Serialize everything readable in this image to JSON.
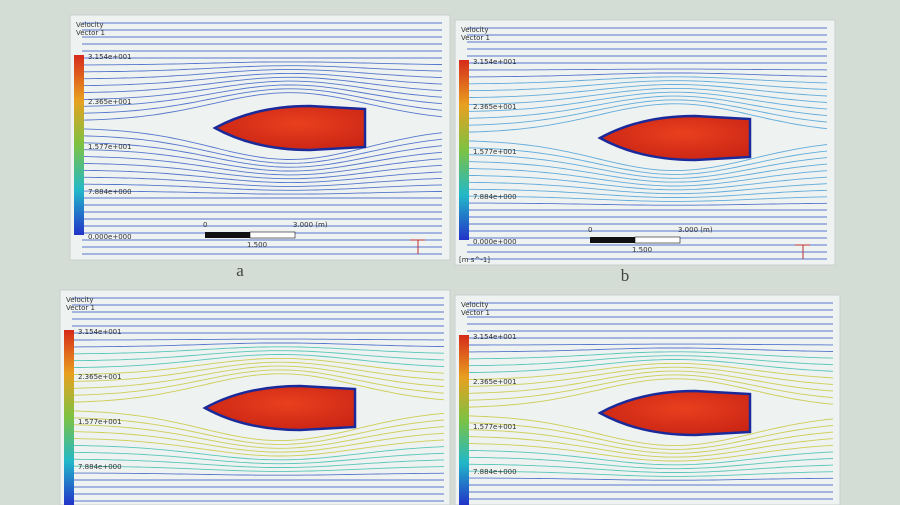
{
  "panels": [
    {
      "title": "Velocity",
      "subtitle": "Vector 1",
      "legend": [
        "3.154e+001",
        "2.365e+001",
        "1.577e+001",
        "7.884e+000",
        "0.000e+000"
      ],
      "scale": {
        "start": "0",
        "end": "3.000 (m)",
        "mid": "1.500"
      },
      "caption": "a"
    },
    {
      "title": "Velocity",
      "subtitle": "Vector 1",
      "legend": [
        "3.154e+001",
        "2.365e+001",
        "1.577e+001",
        "7.884e+000",
        "0.000e+000"
      ],
      "unit": "[m s^-1]",
      "scale": {
        "start": "0",
        "end": "3.000 (m)",
        "mid": "1.500"
      },
      "caption": "b"
    },
    {
      "title": "Velocity",
      "subtitle": "Vector 1",
      "legend": [
        "3.154e+001",
        "2.365e+001",
        "1.577e+001",
        "7.884e+000"
      ]
    },
    {
      "title": "Velocity",
      "subtitle": "Vector 1",
      "legend": [
        "3.154e+001",
        "2.365e+001",
        "1.577e+001",
        "7.884e+000"
      ]
    }
  ]
}
